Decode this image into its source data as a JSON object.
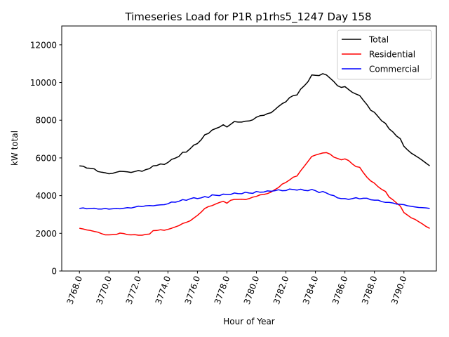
{
  "chart_data": {
    "type": "line",
    "title": "Timeseries Load for P1R p1rhs5_1247  Day 158",
    "xlabel": "Hour of Year",
    "ylabel": "kW total",
    "xlim": [
      3766.8,
      3792.2
    ],
    "ylim": [
      0,
      13000
    ],
    "xticks": [
      3768,
      3770,
      3772,
      3774,
      3776,
      3778,
      3780,
      3782,
      3784,
      3786,
      3788,
      3790
    ],
    "xtick_labels": [
      "3768.0",
      "3770.0",
      "3772.0",
      "3774.0",
      "3776.0",
      "3778.0",
      "3780.0",
      "3782.0",
      "3784.0",
      "3786.0",
      "3788.0",
      "3790.0"
    ],
    "yticks": [
      0,
      2000,
      4000,
      6000,
      8000,
      10000,
      12000
    ],
    "ytick_labels": [
      "0",
      "2000",
      "4000",
      "6000",
      "8000",
      "10000",
      "12000"
    ],
    "legend_position": "top-right",
    "series": [
      {
        "name": "Total",
        "color": "#000000",
        "points": [
          [
            3768.0,
            5580
          ],
          [
            3768.25,
            5560
          ],
          [
            3768.5,
            5460
          ],
          [
            3768.75,
            5450
          ],
          [
            3769.0,
            5420
          ],
          [
            3769.25,
            5280
          ],
          [
            3769.5,
            5240
          ],
          [
            3769.75,
            5210
          ],
          [
            3770.0,
            5160
          ],
          [
            3770.25,
            5180
          ],
          [
            3770.5,
            5240
          ],
          [
            3770.75,
            5290
          ],
          [
            3771.0,
            5280
          ],
          [
            3771.25,
            5260
          ],
          [
            3771.5,
            5230
          ],
          [
            3771.75,
            5280
          ],
          [
            3772.0,
            5330
          ],
          [
            3772.25,
            5290
          ],
          [
            3772.5,
            5380
          ],
          [
            3772.75,
            5430
          ],
          [
            3773.0,
            5580
          ],
          [
            3773.25,
            5600
          ],
          [
            3773.5,
            5680
          ],
          [
            3773.75,
            5650
          ],
          [
            3774.0,
            5760
          ],
          [
            3774.25,
            5920
          ],
          [
            3774.5,
            5990
          ],
          [
            3774.75,
            6080
          ],
          [
            3775.0,
            6300
          ],
          [
            3775.25,
            6310
          ],
          [
            3775.5,
            6480
          ],
          [
            3775.75,
            6680
          ],
          [
            3776.0,
            6760
          ],
          [
            3776.25,
            6960
          ],
          [
            3776.5,
            7230
          ],
          [
            3776.75,
            7300
          ],
          [
            3777.0,
            7480
          ],
          [
            3777.25,
            7560
          ],
          [
            3777.5,
            7640
          ],
          [
            3777.75,
            7760
          ],
          [
            3778.0,
            7640
          ],
          [
            3778.25,
            7780
          ],
          [
            3778.5,
            7930
          ],
          [
            3778.75,
            7900
          ],
          [
            3779.0,
            7900
          ],
          [
            3779.25,
            7950
          ],
          [
            3779.5,
            7960
          ],
          [
            3779.75,
            8020
          ],
          [
            3780.0,
            8160
          ],
          [
            3780.25,
            8240
          ],
          [
            3780.5,
            8260
          ],
          [
            3780.75,
            8350
          ],
          [
            3781.0,
            8400
          ],
          [
            3781.25,
            8560
          ],
          [
            3781.5,
            8730
          ],
          [
            3781.75,
            8880
          ],
          [
            3782.0,
            8980
          ],
          [
            3782.25,
            9200
          ],
          [
            3782.5,
            9310
          ],
          [
            3782.75,
            9340
          ],
          [
            3783.0,
            9650
          ],
          [
            3783.25,
            9830
          ],
          [
            3783.5,
            10050
          ],
          [
            3783.75,
            10400
          ],
          [
            3784.0,
            10380
          ],
          [
            3784.25,
            10370
          ],
          [
            3784.5,
            10470
          ],
          [
            3784.75,
            10400
          ],
          [
            3785.0,
            10230
          ],
          [
            3785.25,
            10050
          ],
          [
            3785.5,
            9830
          ],
          [
            3785.75,
            9740
          ],
          [
            3786.0,
            9780
          ],
          [
            3786.25,
            9630
          ],
          [
            3786.5,
            9480
          ],
          [
            3786.75,
            9390
          ],
          [
            3787.0,
            9310
          ],
          [
            3787.25,
            9060
          ],
          [
            3787.5,
            8820
          ],
          [
            3787.75,
            8530
          ],
          [
            3788.0,
            8420
          ],
          [
            3788.25,
            8190
          ],
          [
            3788.5,
            7960
          ],
          [
            3788.75,
            7830
          ],
          [
            3789.0,
            7540
          ],
          [
            3789.25,
            7380
          ],
          [
            3789.5,
            7160
          ],
          [
            3789.75,
            7020
          ],
          [
            3790.0,
            6620
          ],
          [
            3790.25,
            6420
          ],
          [
            3790.5,
            6250
          ],
          [
            3790.75,
            6130
          ],
          [
            3791.0,
            6010
          ],
          [
            3791.25,
            5870
          ],
          [
            3791.5,
            5720
          ],
          [
            3791.75,
            5580
          ]
        ]
      },
      {
        "name": "Residential",
        "color": "#ff0000",
        "points": [
          [
            3768.0,
            2270
          ],
          [
            3768.25,
            2230
          ],
          [
            3768.5,
            2180
          ],
          [
            3768.75,
            2150
          ],
          [
            3769.0,
            2100
          ],
          [
            3769.25,
            2060
          ],
          [
            3769.5,
            1980
          ],
          [
            3769.75,
            1920
          ],
          [
            3770.0,
            1920
          ],
          [
            3770.25,
            1930
          ],
          [
            3770.5,
            1940
          ],
          [
            3770.75,
            2010
          ],
          [
            3771.0,
            1990
          ],
          [
            3771.25,
            1930
          ],
          [
            3771.5,
            1920
          ],
          [
            3771.75,
            1930
          ],
          [
            3772.0,
            1900
          ],
          [
            3772.25,
            1900
          ],
          [
            3772.5,
            1940
          ],
          [
            3772.75,
            1960
          ],
          [
            3773.0,
            2140
          ],
          [
            3773.25,
            2150
          ],
          [
            3773.5,
            2190
          ],
          [
            3773.75,
            2160
          ],
          [
            3774.0,
            2210
          ],
          [
            3774.25,
            2270
          ],
          [
            3774.5,
            2340
          ],
          [
            3774.75,
            2410
          ],
          [
            3775.0,
            2520
          ],
          [
            3775.25,
            2580
          ],
          [
            3775.5,
            2660
          ],
          [
            3775.75,
            2810
          ],
          [
            3776.0,
            2950
          ],
          [
            3776.25,
            3120
          ],
          [
            3776.5,
            3320
          ],
          [
            3776.75,
            3420
          ],
          [
            3777.0,
            3470
          ],
          [
            3777.25,
            3560
          ],
          [
            3777.5,
            3640
          ],
          [
            3777.75,
            3700
          ],
          [
            3778.0,
            3600
          ],
          [
            3778.25,
            3750
          ],
          [
            3778.5,
            3800
          ],
          [
            3778.75,
            3800
          ],
          [
            3779.0,
            3810
          ],
          [
            3779.25,
            3790
          ],
          [
            3779.5,
            3840
          ],
          [
            3779.75,
            3920
          ],
          [
            3780.0,
            3960
          ],
          [
            3780.25,
            4040
          ],
          [
            3780.5,
            4060
          ],
          [
            3780.75,
            4110
          ],
          [
            3781.0,
            4190
          ],
          [
            3781.25,
            4320
          ],
          [
            3781.5,
            4430
          ],
          [
            3781.75,
            4610
          ],
          [
            3782.0,
            4700
          ],
          [
            3782.25,
            4830
          ],
          [
            3782.5,
            4980
          ],
          [
            3782.75,
            5040
          ],
          [
            3783.0,
            5320
          ],
          [
            3783.25,
            5560
          ],
          [
            3783.5,
            5820
          ],
          [
            3783.75,
            6080
          ],
          [
            3784.0,
            6150
          ],
          [
            3784.25,
            6210
          ],
          [
            3784.5,
            6260
          ],
          [
            3784.75,
            6280
          ],
          [
            3785.0,
            6200
          ],
          [
            3785.25,
            6040
          ],
          [
            3785.5,
            5970
          ],
          [
            3785.75,
            5900
          ],
          [
            3786.0,
            5950
          ],
          [
            3786.25,
            5860
          ],
          [
            3786.5,
            5680
          ],
          [
            3786.75,
            5540
          ],
          [
            3787.0,
            5500
          ],
          [
            3787.25,
            5220
          ],
          [
            3787.5,
            4970
          ],
          [
            3787.75,
            4780
          ],
          [
            3788.0,
            4660
          ],
          [
            3788.25,
            4470
          ],
          [
            3788.5,
            4330
          ],
          [
            3788.75,
            4220
          ],
          [
            3789.0,
            3920
          ],
          [
            3789.25,
            3780
          ],
          [
            3789.5,
            3610
          ],
          [
            3789.75,
            3450
          ],
          [
            3790.0,
            3100
          ],
          [
            3790.25,
            2960
          ],
          [
            3790.5,
            2820
          ],
          [
            3790.75,
            2740
          ],
          [
            3791.0,
            2620
          ],
          [
            3791.25,
            2500
          ],
          [
            3791.5,
            2360
          ],
          [
            3791.75,
            2260
          ]
        ]
      },
      {
        "name": "Commercial",
        "color": "#0000ff",
        "points": [
          [
            3768.0,
            3320
          ],
          [
            3768.25,
            3350
          ],
          [
            3768.5,
            3300
          ],
          [
            3768.75,
            3320
          ],
          [
            3769.0,
            3330
          ],
          [
            3769.25,
            3290
          ],
          [
            3769.5,
            3290
          ],
          [
            3769.75,
            3320
          ],
          [
            3770.0,
            3280
          ],
          [
            3770.25,
            3300
          ],
          [
            3770.5,
            3320
          ],
          [
            3770.75,
            3300
          ],
          [
            3771.0,
            3330
          ],
          [
            3771.25,
            3360
          ],
          [
            3771.5,
            3340
          ],
          [
            3771.75,
            3390
          ],
          [
            3772.0,
            3440
          ],
          [
            3772.25,
            3420
          ],
          [
            3772.5,
            3460
          ],
          [
            3772.75,
            3470
          ],
          [
            3773.0,
            3460
          ],
          [
            3773.25,
            3490
          ],
          [
            3773.5,
            3510
          ],
          [
            3773.75,
            3520
          ],
          [
            3774.0,
            3570
          ],
          [
            3774.25,
            3660
          ],
          [
            3774.5,
            3650
          ],
          [
            3774.75,
            3700
          ],
          [
            3775.0,
            3790
          ],
          [
            3775.25,
            3750
          ],
          [
            3775.5,
            3830
          ],
          [
            3775.75,
            3890
          ],
          [
            3776.0,
            3840
          ],
          [
            3776.25,
            3880
          ],
          [
            3776.5,
            3950
          ],
          [
            3776.75,
            3900
          ],
          [
            3777.0,
            4040
          ],
          [
            3777.25,
            4020
          ],
          [
            3777.5,
            4000
          ],
          [
            3777.75,
            4080
          ],
          [
            3778.0,
            4060
          ],
          [
            3778.25,
            4060
          ],
          [
            3778.5,
            4140
          ],
          [
            3778.75,
            4110
          ],
          [
            3779.0,
            4100
          ],
          [
            3779.25,
            4180
          ],
          [
            3779.5,
            4140
          ],
          [
            3779.75,
            4120
          ],
          [
            3780.0,
            4220
          ],
          [
            3780.25,
            4180
          ],
          [
            3780.5,
            4190
          ],
          [
            3780.75,
            4250
          ],
          [
            3781.0,
            4230
          ],
          [
            3781.25,
            4260
          ],
          [
            3781.5,
            4310
          ],
          [
            3781.75,
            4260
          ],
          [
            3782.0,
            4270
          ],
          [
            3782.25,
            4350
          ],
          [
            3782.5,
            4320
          ],
          [
            3782.75,
            4290
          ],
          [
            3783.0,
            4340
          ],
          [
            3783.25,
            4280
          ],
          [
            3783.5,
            4260
          ],
          [
            3783.75,
            4330
          ],
          [
            3784.0,
            4260
          ],
          [
            3784.25,
            4160
          ],
          [
            3784.5,
            4220
          ],
          [
            3784.75,
            4140
          ],
          [
            3785.0,
            4040
          ],
          [
            3785.25,
            4000
          ],
          [
            3785.5,
            3880
          ],
          [
            3785.75,
            3840
          ],
          [
            3786.0,
            3840
          ],
          [
            3786.25,
            3800
          ],
          [
            3786.5,
            3840
          ],
          [
            3786.75,
            3890
          ],
          [
            3787.0,
            3830
          ],
          [
            3787.25,
            3860
          ],
          [
            3787.5,
            3860
          ],
          [
            3787.75,
            3780
          ],
          [
            3788.0,
            3760
          ],
          [
            3788.25,
            3760
          ],
          [
            3788.5,
            3680
          ],
          [
            3788.75,
            3640
          ],
          [
            3789.0,
            3640
          ],
          [
            3789.25,
            3610
          ],
          [
            3789.5,
            3550
          ],
          [
            3789.75,
            3540
          ],
          [
            3790.0,
            3520
          ],
          [
            3790.25,
            3460
          ],
          [
            3790.5,
            3430
          ],
          [
            3790.75,
            3400
          ],
          [
            3791.0,
            3370
          ],
          [
            3791.25,
            3360
          ],
          [
            3791.5,
            3350
          ],
          [
            3791.75,
            3320
          ]
        ]
      }
    ]
  }
}
